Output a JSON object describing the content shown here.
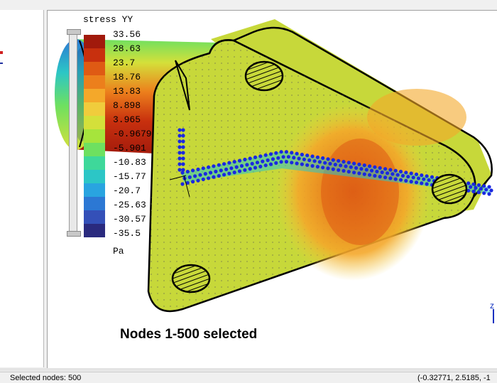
{
  "legend": {
    "title": "stress YY",
    "unit": "Pa",
    "bands": [
      {
        "label": "33.56",
        "color": "#a11a0c"
      },
      {
        "label": "28.63",
        "color": "#c8300e"
      },
      {
        "label": "23.7",
        "color": "#df5a14"
      },
      {
        "label": "18.76",
        "color": "#ec7f1c"
      },
      {
        "label": "13.83",
        "color": "#f4a82a"
      },
      {
        "label": "8.898",
        "color": "#f0cc3c"
      },
      {
        "label": "3.965",
        "color": "#d4e03a"
      },
      {
        "label": "-0.9679",
        "color": "#a6e43c"
      },
      {
        "label": "-5.901",
        "color": "#6ee060"
      },
      {
        "label": "-10.83",
        "color": "#3ed89a"
      },
      {
        "label": "-15.77",
        "color": "#2cc6c6"
      },
      {
        "label": "-20.7",
        "color": "#29a4e0"
      },
      {
        "label": "-25.63",
        "color": "#2c78d4"
      },
      {
        "label": "-30.57",
        "color": "#3450b8"
      },
      {
        "label": "-35.5",
        "color": "#2a2a7e"
      }
    ]
  },
  "viewport": {
    "selection_message": "Nodes 1-500 selected",
    "axis_label": "z"
  },
  "status_bar": {
    "selected_nodes": "Selected nodes: 500",
    "coordinates": "(-0.32771, 2.5185, -1"
  }
}
